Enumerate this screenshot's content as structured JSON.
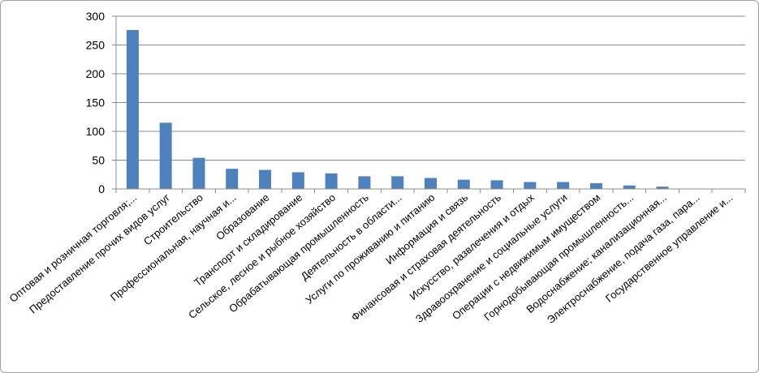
{
  "chart_data": {
    "type": "bar",
    "categories": [
      "Оптовая и розничная торговля;...",
      "Предоставление прочих видов услуг",
      "Строительство",
      "Профессиональная, научная и...",
      "Образование",
      "Транспорт и складирование",
      "Сельское, лесное и рыбное хозяйство",
      "Обрабатывающая промышленность",
      "Деятельность в области...",
      "Услуги по проживанию и питанию",
      "Информация и связь",
      "Финансовая и страховая деятельность",
      "Искусство, развлечения и отдых",
      "Здравоохранение и социальные услуги",
      "Операции с недвижимым имуществом",
      "Горнодобывающая промышленность...",
      "Водоснабжение; канализационная...",
      "Электроснабжение, подача газа, пара...",
      "Государственное управление и..."
    ],
    "values": [
      276,
      115,
      54,
      35,
      33,
      29,
      27,
      22,
      22,
      19,
      16,
      15,
      12,
      12,
      10,
      6,
      4,
      0,
      0
    ],
    "ylim": [
      0,
      300
    ],
    "yticks": [
      "0",
      "50",
      "100",
      "150",
      "200",
      "250",
      "300"
    ],
    "grid": true,
    "bar_color": "#4f81bd",
    "grid_color": "#8c8c8c"
  }
}
